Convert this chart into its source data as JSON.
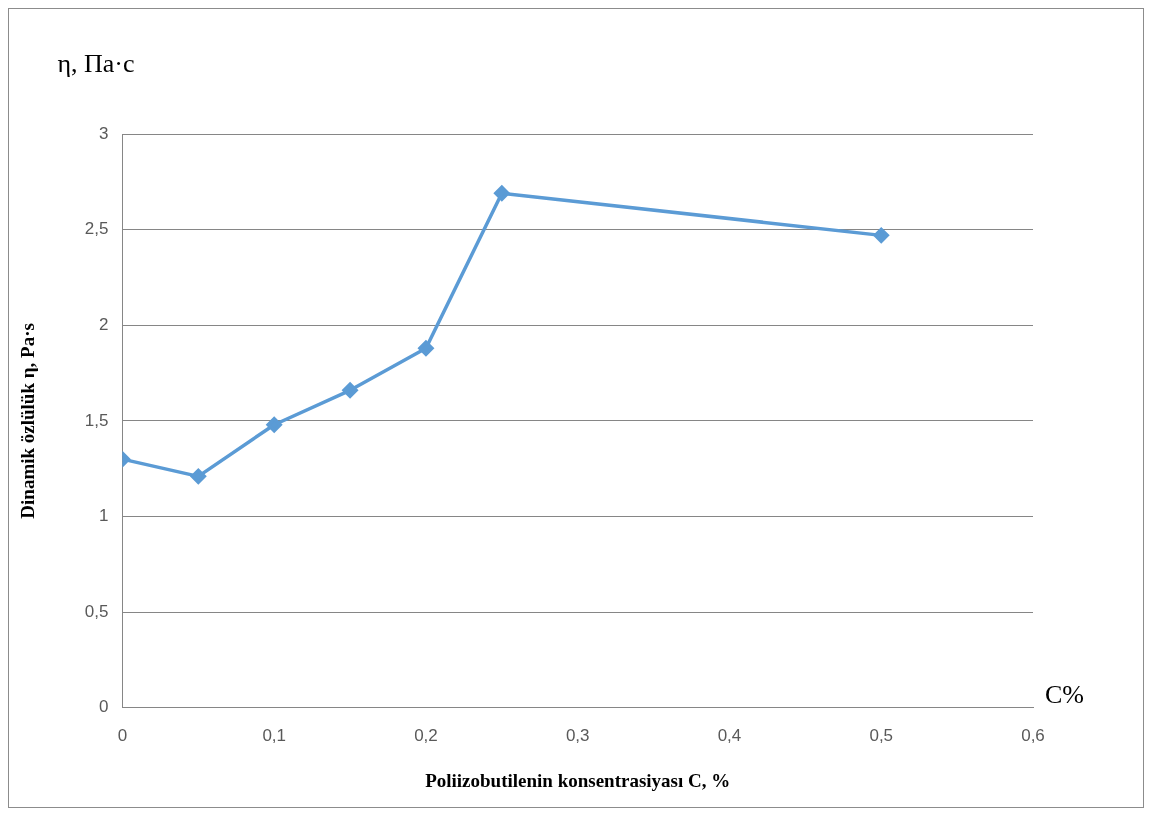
{
  "chart_data": {
    "type": "line",
    "xlabel": "Poliizobutilenin konsentrasiyası C, %",
    "ylabel": "Dinamik özlülük η, Pa·s",
    "annotations": [
      "η, Па·с",
      "C%"
    ],
    "x": [
      0,
      0.05,
      0.1,
      0.15,
      0.2,
      0.25,
      0.5
    ],
    "series": [
      {
        "color": "#5b9bd5",
        "values": [
          1.3,
          1.21,
          1.48,
          1.66,
          1.88,
          2.69,
          2.47
        ]
      }
    ],
    "xlim": [
      0,
      0.6
    ],
    "xticks": [
      0,
      {
        "value": 0.1,
        "label": "0,1"
      },
      {
        "value": 0.2,
        "label": "0,2"
      },
      {
        "value": 0.3,
        "label": "0,3"
      },
      {
        "value": 0.4,
        "label": "0,4"
      },
      {
        "value": 0.5,
        "label": "0,5"
      },
      {
        "value": 0.6,
        "label": "0,6"
      }
    ],
    "ylim": [
      0,
      3
    ],
    "yticks": [
      0,
      {
        "value": 0.5,
        "label": "0,5"
      },
      1,
      {
        "value": 1.5,
        "label": "1,5"
      },
      2,
      {
        "value": 2.5,
        "label": "2,5"
      },
      3
    ],
    "grid": "y",
    "legend": false,
    "marker": "diamond",
    "line_style": "solid"
  }
}
